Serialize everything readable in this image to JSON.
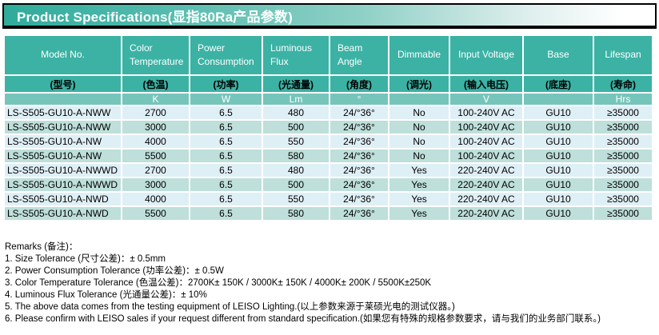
{
  "banner": {
    "title": "Product Specifications(显指80Ra产品参数)"
  },
  "colors": {
    "header_teal": "#3bb2a4",
    "unit_row_teal": "#76c5bb",
    "row_light_blue": "#dfeff6",
    "row_light_green": "#bedfda",
    "banner_gradient_start": "#2fab9b",
    "banner_gradient_end": "#ffffff"
  },
  "table": {
    "columns": [
      {
        "en": "Model No.",
        "zh": "(型号)",
        "unit": ""
      },
      {
        "en": "Color Temperature",
        "zh": "(色温)",
        "unit": "K"
      },
      {
        "en": "Power Consumption",
        "zh": "(功率)",
        "unit": "W"
      },
      {
        "en": "Luminous Flux",
        "zh": "(光通量)",
        "unit": "Lm"
      },
      {
        "en": "Beam Angle",
        "zh": "(角度)",
        "unit": "°"
      },
      {
        "en": "Dimmable",
        "zh": "(调光)",
        "unit": ""
      },
      {
        "en": "Input Voltage",
        "zh": "(输入电压)",
        "unit": "V"
      },
      {
        "en": "Base",
        "zh": "(底座)",
        "unit": ""
      },
      {
        "en": "Lifespan",
        "zh": "(寿命)",
        "unit": "Hrs"
      }
    ],
    "rows": [
      [
        "LS-S505-GU10-A-NWW",
        "2700",
        "6.5",
        "480",
        "24/°36°",
        "No",
        "100-240V AC",
        "GU10",
        "≥35000"
      ],
      [
        "LS-S505-GU10-A-NWW",
        "3000",
        "6.5",
        "500",
        "24/°36°",
        "No",
        "100-240V AC",
        "GU10",
        "≥35000"
      ],
      [
        "LS-S505-GU10-A-NW",
        "4000",
        "6.5",
        "550",
        "24/°36°",
        "No",
        "100-240V AC",
        "GU10",
        "≥35000"
      ],
      [
        "LS-S505-GU10-A-NW",
        "5500",
        "6.5",
        "580",
        "24/°36°",
        "No",
        "100-240V AC",
        "GU10",
        "≥35000"
      ],
      [
        "LS-S505-GU10-A-NWWD",
        "2700",
        "6.5",
        "480",
        "24/°36°",
        "Yes",
        "220-240V AC",
        "GU10",
        "≥35000"
      ],
      [
        "LS-S505-GU10-A-NWWD",
        "3000",
        "6.5",
        "500",
        "24/°36°",
        "Yes",
        "220-240V AC",
        "GU10",
        "≥35000"
      ],
      [
        "LS-S505-GU10-A-NWD",
        "4000",
        "6.5",
        "550",
        "24/°36°",
        "Yes",
        "220-240V AC",
        "GU10",
        "≥35000"
      ],
      [
        "LS-S505-GU10-A-NWD",
        "5500",
        "6.5",
        "580",
        "24/°36°",
        "Yes",
        "220-240V AC",
        "GU10",
        "≥35000"
      ]
    ]
  },
  "remarks": {
    "heading": "Remarks (备注)：",
    "items": [
      "1. Size Tolerance (尺寸公差)：± 0.5mm",
      "2. Power Consumption Tolerance (功率公差)：± 0.5W",
      "3. Color Temperature Tolerance (色温公差)：2700K± 150K  /  3000K± 150K  /  4000K± 200K  /  5500K±250K",
      "4. Luminous Flux Tolerance (光通量公差)：± 10%",
      "5. The above data comes from the testing equipment of LEISO Lighting.(以上参数来源于莱硕光电的测试仪器。)",
      "6. Please confirm with LEISO sales if your request different from standard specification.(如果您有特殊的规格参数要求，请与我们的业务部门联系。)"
    ]
  }
}
